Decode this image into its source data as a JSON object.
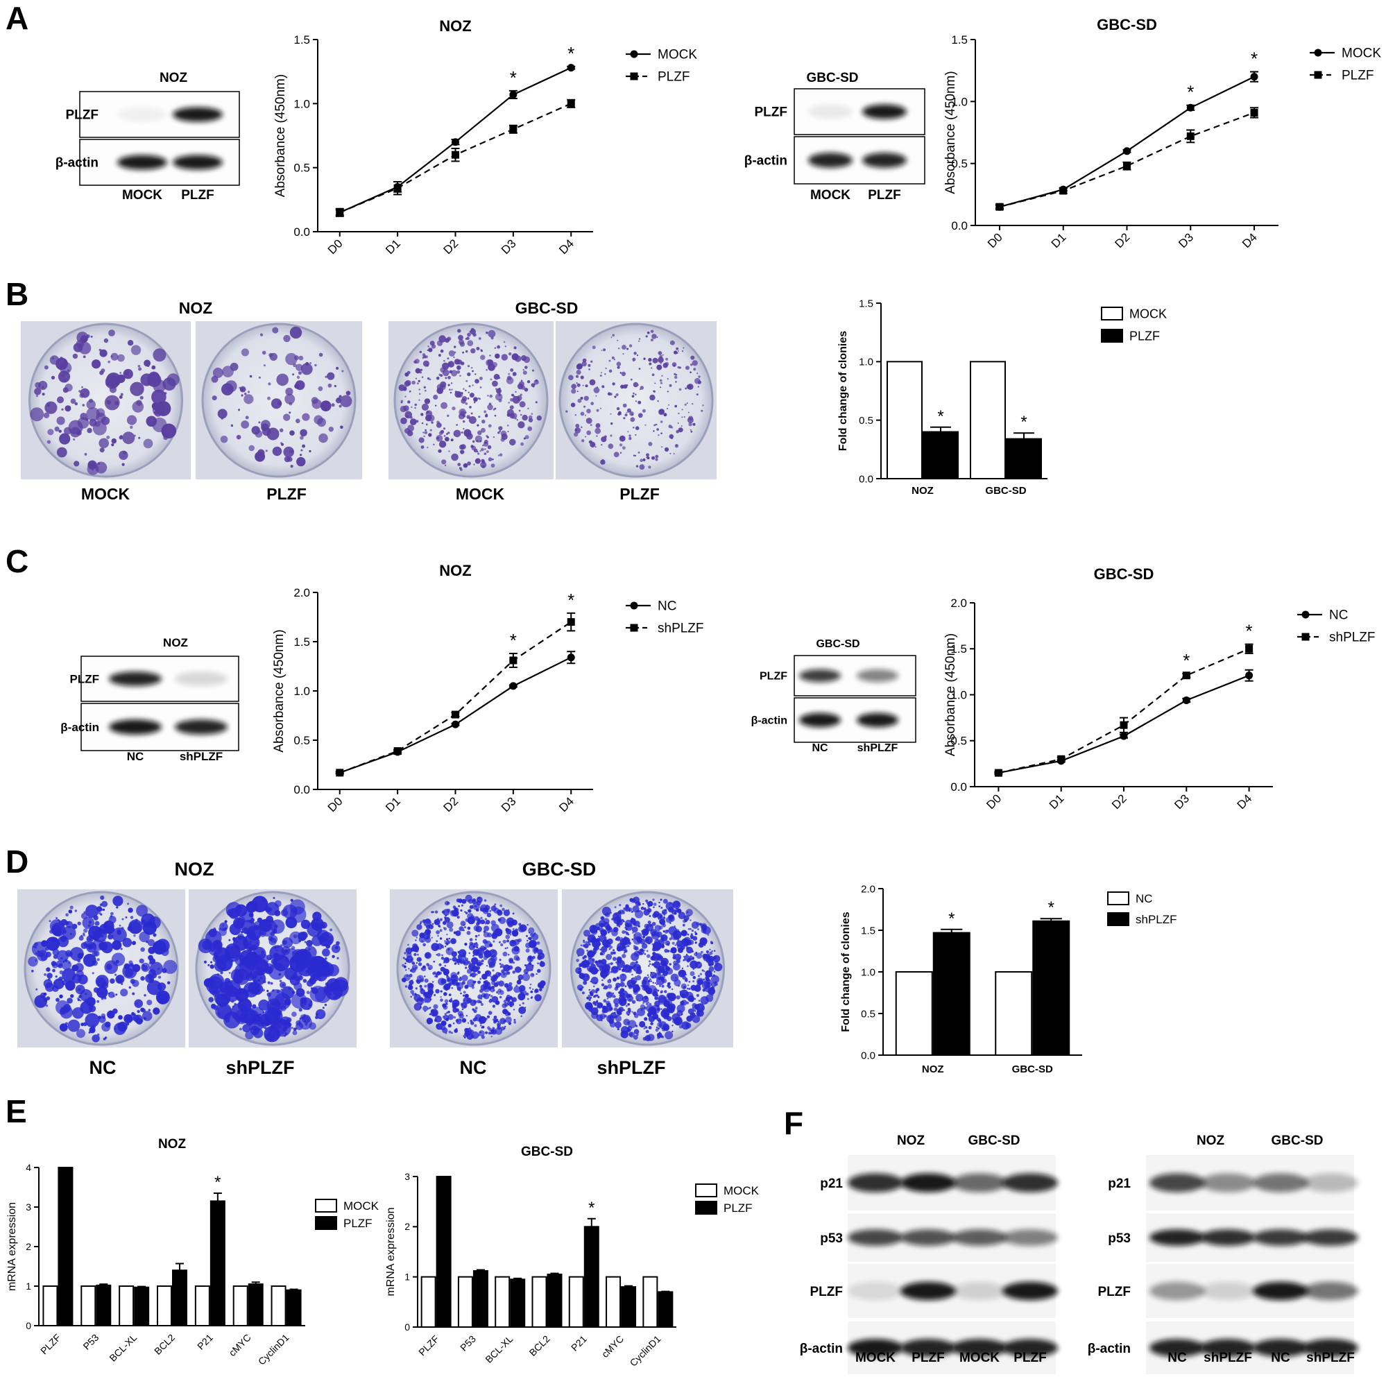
{
  "panel_letters": [
    "A",
    "B",
    "C",
    "D",
    "E",
    "F"
  ],
  "blots": {
    "A_noz": {
      "title": "NOZ",
      "bands": [
        "PLZF",
        "β-actin"
      ],
      "lanes": [
        "MOCK",
        "PLZF"
      ]
    },
    "A_gbc": {
      "title": "GBC-SD",
      "bands": [
        "PLZF",
        "β-actin"
      ],
      "lanes": [
        "MOCK",
        "PLZF"
      ]
    },
    "C_noz": {
      "title": "NOZ",
      "bands": [
        "PLZF",
        "β-actin"
      ],
      "lanes": [
        "NC",
        "shPLZF"
      ]
    },
    "C_gbc": {
      "title": "GBC-SD",
      "bands": [
        "PLZF",
        "β-actin"
      ],
      "lanes": [
        "NC",
        "shPLZF"
      ]
    },
    "F_left": {
      "groups": [
        "NOZ",
        "GBC-SD"
      ],
      "bands": [
        "p21",
        "p53",
        "PLZF",
        "β-actin"
      ],
      "lanes": [
        "MOCK",
        "PLZF",
        "MOCK",
        "PLZF"
      ]
    },
    "F_right": {
      "groups": [
        "NOZ",
        "GBC-SD"
      ],
      "bands": [
        "p21",
        "p53",
        "PLZF",
        "β-actin"
      ],
      "lanes": [
        "NC",
        "shPLZF",
        "NC",
        "shPLZF"
      ]
    }
  },
  "plates": {
    "B": {
      "groups": [
        "NOZ",
        "GBC-SD"
      ],
      "labels": [
        "MOCK",
        "PLZF",
        "MOCK",
        "PLZF"
      ]
    },
    "D": {
      "groups": [
        "NOZ",
        "GBC-SD"
      ],
      "labels": [
        "NC",
        "shPLZF",
        "NC",
        "shPLZF"
      ]
    },
    "colors": {
      "stain": "#5a3fa0",
      "stain_dark": "#2a2ad0",
      "plate_bg": "#dde0ea"
    }
  },
  "chart_data": [
    {
      "id": "A_noz",
      "type": "line",
      "title": "NOZ",
      "xlabel": "",
      "ylabel": "Absorbance (450nm)",
      "categories": [
        "D0",
        "D1",
        "D2",
        "D3",
        "D4"
      ],
      "ylim": [
        0,
        1.5
      ],
      "yticks": [
        "0.0",
        "0.5",
        "1.0",
        "1.5"
      ],
      "series": [
        {
          "name": "MOCK",
          "values": [
            0.15,
            0.35,
            0.7,
            1.07,
            1.28
          ],
          "errors": [
            0.02,
            0.04,
            0.02,
            0.03,
            0.01
          ],
          "marker": "circle",
          "dash": false
        },
        {
          "name": "PLZF",
          "values": [
            0.15,
            0.34,
            0.6,
            0.8,
            1.0
          ],
          "errors": [
            0.03,
            0.05,
            0.05,
            0.03,
            0.03
          ],
          "marker": "square",
          "dash": true
        }
      ],
      "annotations": [
        {
          "x": "D3",
          "text": "*"
        },
        {
          "x": "D4",
          "text": "*"
        }
      ],
      "legend": "top-right"
    },
    {
      "id": "A_gbc",
      "type": "line",
      "title": "GBC-SD",
      "xlabel": "",
      "ylabel": "Absorbance (450nm)",
      "categories": [
        "D0",
        "D1",
        "D2",
        "D3",
        "D4"
      ],
      "ylim": [
        0,
        1.5
      ],
      "yticks": [
        "0.0",
        "0.5",
        "1.0",
        "1.5"
      ],
      "series": [
        {
          "name": "MOCK",
          "values": [
            0.15,
            0.29,
            0.6,
            0.95,
            1.2
          ],
          "errors": [
            0.01,
            0.01,
            0.01,
            0.02,
            0.04
          ],
          "marker": "circle",
          "dash": false
        },
        {
          "name": "PLZF",
          "values": [
            0.15,
            0.28,
            0.48,
            0.72,
            0.91
          ],
          "errors": [
            0.02,
            0.02,
            0.03,
            0.05,
            0.04
          ],
          "marker": "square",
          "dash": true
        }
      ],
      "annotations": [
        {
          "x": "D3",
          "text": "*"
        },
        {
          "x": "D4",
          "text": "*"
        }
      ],
      "legend": "top-right"
    },
    {
      "id": "B_bar",
      "type": "bar",
      "title": "",
      "xlabel": "",
      "ylabel": "Fold change of clonies",
      "categories": [
        "NOZ",
        "GBC-SD"
      ],
      "ylim": [
        0,
        1.5
      ],
      "yticks": [
        "0.0",
        "0.5",
        "1.0",
        "1.5"
      ],
      "series": [
        {
          "name": "MOCK",
          "values": [
            1.0,
            1.0
          ],
          "errors": [
            0,
            0
          ],
          "fill": "white"
        },
        {
          "name": "PLZF",
          "values": [
            0.4,
            0.34
          ],
          "errors": [
            0.04,
            0.05
          ],
          "fill": "black"
        }
      ],
      "annotations": [
        {
          "x": "NOZ",
          "text": "*"
        },
        {
          "x": "GBC-SD",
          "text": "*"
        }
      ],
      "legend": "top-right"
    },
    {
      "id": "C_noz",
      "type": "line",
      "title": "NOZ",
      "xlabel": "",
      "ylabel": "Absorbance (450nm)",
      "categories": [
        "D0",
        "D1",
        "D2",
        "D3",
        "D4"
      ],
      "ylim": [
        0,
        2.0
      ],
      "yticks": [
        "0.0",
        "0.5",
        "1.0",
        "1.5",
        "2.0"
      ],
      "series": [
        {
          "name": "NC",
          "values": [
            0.17,
            0.38,
            0.66,
            1.05,
            1.34
          ],
          "errors": [
            0.01,
            0.02,
            0.01,
            0.01,
            0.06
          ],
          "marker": "circle",
          "dash": false
        },
        {
          "name": "shPLZF",
          "values": [
            0.17,
            0.39,
            0.76,
            1.31,
            1.7
          ],
          "errors": [
            0.01,
            0.01,
            0.02,
            0.07,
            0.09
          ],
          "marker": "square",
          "dash": true
        }
      ],
      "annotations": [
        {
          "x": "D3",
          "text": "*"
        },
        {
          "x": "D4",
          "text": "*"
        }
      ],
      "legend": "top-right"
    },
    {
      "id": "C_gbc",
      "type": "line",
      "title": "GBC-SD",
      "xlabel": "",
      "ylabel": "Absorbance (450nm)",
      "categories": [
        "D0",
        "D1",
        "D2",
        "D3",
        "D4"
      ],
      "ylim": [
        0,
        2.0
      ],
      "yticks": [
        "0.0",
        "0.5",
        "1.0",
        "1.5",
        "2.0"
      ],
      "series": [
        {
          "name": "NC",
          "values": [
            0.15,
            0.28,
            0.55,
            0.94,
            1.21
          ],
          "errors": [
            0.01,
            0.01,
            0.02,
            0.02,
            0.06
          ],
          "marker": "circle",
          "dash": false
        },
        {
          "name": "shPLZF",
          "values": [
            0.15,
            0.3,
            0.67,
            1.21,
            1.5
          ],
          "errors": [
            0.01,
            0.02,
            0.08,
            0.02,
            0.05
          ],
          "marker": "square",
          "dash": true
        }
      ],
      "annotations": [
        {
          "x": "D3",
          "text": "*"
        },
        {
          "x": "D4",
          "text": "*"
        }
      ],
      "legend": "top-right"
    },
    {
      "id": "D_bar",
      "type": "bar",
      "title": "",
      "xlabel": "",
      "ylabel": "Fold change of clonies",
      "categories": [
        "NOZ",
        "GBC-SD"
      ],
      "ylim": [
        0,
        2.0
      ],
      "yticks": [
        "0.0",
        "0.5",
        "1.0",
        "1.5",
        "2.0"
      ],
      "series": [
        {
          "name": "NC",
          "values": [
            1.0,
            1.0
          ],
          "errors": [
            0,
            0
          ],
          "fill": "white"
        },
        {
          "name": "shPLZF",
          "values": [
            1.47,
            1.61
          ],
          "errors": [
            0.04,
            0.03
          ],
          "fill": "black"
        }
      ],
      "annotations": [
        {
          "x": "NOZ",
          "text": "*"
        },
        {
          "x": "GBC-SD",
          "text": "*"
        }
      ],
      "legend": "top-right"
    },
    {
      "id": "E_noz",
      "type": "bar",
      "title": "NOZ",
      "xlabel": "",
      "ylabel": "mRNA expression",
      "categories": [
        "PLZF",
        "P53",
        "BCL-XL",
        "BCL2",
        "P21",
        "cMYC",
        "CyclinD1"
      ],
      "ylim": [
        0,
        4
      ],
      "yticks": [
        "0",
        "1",
        "2",
        "3",
        "4"
      ],
      "series": [
        {
          "name": "MOCK",
          "values": [
            1,
            1,
            1,
            1,
            1,
            1,
            1
          ],
          "errors": [
            0,
            0,
            0,
            0,
            0,
            0,
            0
          ],
          "fill": "white"
        },
        {
          "name": "PLZF",
          "values": [
            4.0,
            1.02,
            0.97,
            1.4,
            3.15,
            1.05,
            0.9
          ],
          "errors": [
            0,
            0.03,
            0.02,
            0.17,
            0.2,
            0.05,
            0.02
          ],
          "fill": "black"
        }
      ],
      "annotations": [
        {
          "x": "P21",
          "text": "*"
        }
      ],
      "legend": "top-right"
    },
    {
      "id": "E_gbc",
      "type": "bar",
      "title": "GBC-SD",
      "xlabel": "",
      "ylabel": "mRNA expression",
      "categories": [
        "PLZF",
        "P53",
        "BCL-XL",
        "BCL2",
        "P21",
        "cMYC",
        "CyclinD1"
      ],
      "ylim": [
        0,
        3
      ],
      "yticks": [
        "0",
        "1",
        "2",
        "3"
      ],
      "series": [
        {
          "name": "MOCK",
          "values": [
            1,
            1,
            1,
            1,
            1,
            1,
            1
          ],
          "errors": [
            0,
            0,
            0,
            0,
            0,
            0,
            0
          ],
          "fill": "white"
        },
        {
          "name": "PLZF",
          "values": [
            3.0,
            1.12,
            0.95,
            1.05,
            2.0,
            0.8,
            0.7
          ],
          "errors": [
            0,
            0.02,
            0.02,
            0.02,
            0.16,
            0.02,
            0.01
          ],
          "fill": "black"
        }
      ],
      "annotations": [
        {
          "x": "P21",
          "text": "*"
        }
      ],
      "legend": "top-right"
    }
  ]
}
